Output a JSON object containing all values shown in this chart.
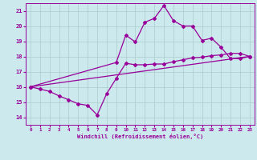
{
  "xlabel": "Windchill (Refroidissement éolien,°C)",
  "xlim": [
    -0.5,
    23.5
  ],
  "ylim": [
    13.5,
    21.5
  ],
  "xticks": [
    0,
    1,
    2,
    3,
    4,
    5,
    6,
    7,
    8,
    9,
    10,
    11,
    12,
    13,
    14,
    15,
    16,
    17,
    18,
    19,
    20,
    21,
    22,
    23
  ],
  "yticks": [
    14,
    15,
    16,
    17,
    18,
    19,
    20,
    21
  ],
  "bg_color": "#cce9ed",
  "line_color": "#990099",
  "grid_color": "#aacccc",
  "line1_x": [
    0,
    1,
    2,
    3,
    4,
    5,
    6,
    7,
    8,
    9,
    10,
    11,
    12,
    13,
    14,
    15,
    16,
    17,
    18,
    19,
    20,
    21,
    22,
    23
  ],
  "line1_y": [
    16.0,
    15.85,
    15.7,
    15.4,
    15.15,
    14.88,
    14.78,
    14.15,
    15.55,
    16.55,
    17.55,
    17.45,
    17.45,
    17.5,
    17.5,
    17.65,
    17.78,
    17.9,
    17.95,
    18.05,
    18.1,
    18.2,
    18.2,
    18.0
  ],
  "line2_x": [
    0,
    9,
    10,
    11,
    12,
    13,
    14,
    15,
    16,
    17,
    18,
    19,
    20,
    21,
    22,
    23
  ],
  "line2_y": [
    16.0,
    17.6,
    19.4,
    18.95,
    20.25,
    20.5,
    21.35,
    20.35,
    20.0,
    20.0,
    19.05,
    19.2,
    18.6,
    17.85,
    17.85,
    18.0
  ],
  "line3_x": [
    0,
    23
  ],
  "line3_y": [
    16.0,
    18.0
  ]
}
